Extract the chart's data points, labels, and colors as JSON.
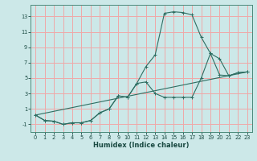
{
  "xlabel": "Humidex (Indice chaleur)",
  "background_color": "#cce8e8",
  "grid_color": "#f0a8a8",
  "line_color": "#2e6e62",
  "xlim": [
    -0.5,
    23.5
  ],
  "ylim": [
    -2.0,
    14.5
  ],
  "yticks": [
    -1,
    1,
    3,
    5,
    7,
    9,
    11,
    13
  ],
  "xticks": [
    0,
    1,
    2,
    3,
    4,
    5,
    6,
    7,
    8,
    9,
    10,
    11,
    12,
    13,
    14,
    15,
    16,
    17,
    18,
    19,
    20,
    21,
    22,
    23
  ],
  "line1_x": [
    0,
    1,
    2,
    3,
    4,
    5,
    6,
    7,
    8,
    9,
    10,
    11,
    12,
    13,
    14,
    15,
    16,
    17,
    18,
    19,
    20,
    21,
    22,
    23
  ],
  "line1_y": [
    0.2,
    -0.5,
    -0.6,
    -1.0,
    -0.8,
    -0.8,
    -0.5,
    0.5,
    1.0,
    2.7,
    2.5,
    4.3,
    6.5,
    8.0,
    13.4,
    13.6,
    13.5,
    13.2,
    10.3,
    8.2,
    5.4,
    5.3,
    5.7,
    5.8
  ],
  "line2_x": [
    0,
    1,
    2,
    3,
    4,
    5,
    6,
    7,
    8,
    9,
    10,
    11,
    12,
    13,
    14,
    15,
    16,
    17,
    18,
    19,
    20,
    21,
    22,
    23
  ],
  "line2_y": [
    0.2,
    -0.5,
    -0.6,
    -1.0,
    -0.8,
    -0.8,
    -0.5,
    0.5,
    1.0,
    2.7,
    2.5,
    4.3,
    4.5,
    3.0,
    2.5,
    2.5,
    2.5,
    2.5,
    5.0,
    8.2,
    7.5,
    5.3,
    5.7,
    5.8
  ],
  "line3_x": [
    0,
    23
  ],
  "line3_y": [
    0.2,
    5.8
  ]
}
